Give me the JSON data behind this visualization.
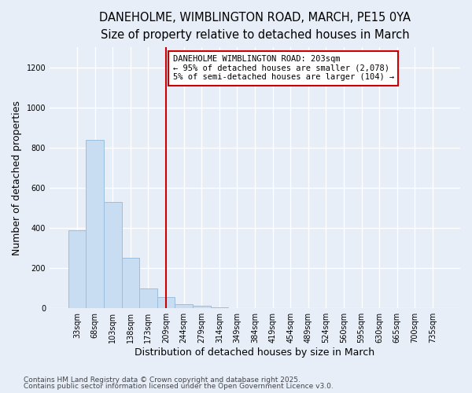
{
  "title_line1": "DANEHOLME, WIMBLINGTON ROAD, MARCH, PE15 0YA",
  "title_line2": "Size of property relative to detached houses in March",
  "xlabel": "Distribution of detached houses by size in March",
  "ylabel": "Number of detached properties",
  "categories": [
    "33sqm",
    "68sqm",
    "103sqm",
    "138sqm",
    "173sqm",
    "209sqm",
    "244sqm",
    "279sqm",
    "314sqm",
    "349sqm",
    "384sqm",
    "419sqm",
    "454sqm",
    "489sqm",
    "524sqm",
    "560sqm",
    "595sqm",
    "630sqm",
    "665sqm",
    "700sqm",
    "735sqm"
  ],
  "values": [
    390,
    840,
    530,
    250,
    100,
    55,
    20,
    13,
    5,
    2,
    0,
    0,
    0,
    0,
    0,
    0,
    0,
    0,
    0,
    0,
    0
  ],
  "bar_color": "#c9ddf2",
  "bar_edge_color": "#9bbedd",
  "red_line_index": 5,
  "ylim": [
    0,
    1300
  ],
  "yticks": [
    0,
    200,
    400,
    600,
    800,
    1000,
    1200
  ],
  "annotation_text": "DANEHOLME WIMBLINGTON ROAD: 203sqm\n← 95% of detached houses are smaller (2,078)\n5% of semi-detached houses are larger (104) →",
  "annotation_box_facecolor": "#ffffff",
  "annotation_box_edgecolor": "#cc0000",
  "footnote_line1": "Contains HM Land Registry data © Crown copyright and database right 2025.",
  "footnote_line2": "Contains public sector information licensed under the Open Government Licence v3.0.",
  "background_color": "#e8eef8",
  "plot_background": "#e8eef8",
  "grid_color": "#ffffff",
  "title_fontsize": 10.5,
  "subtitle_fontsize": 9.5,
  "axis_label_fontsize": 9,
  "tick_fontsize": 7,
  "annotation_fontsize": 7.5,
  "footnote_fontsize": 6.5
}
